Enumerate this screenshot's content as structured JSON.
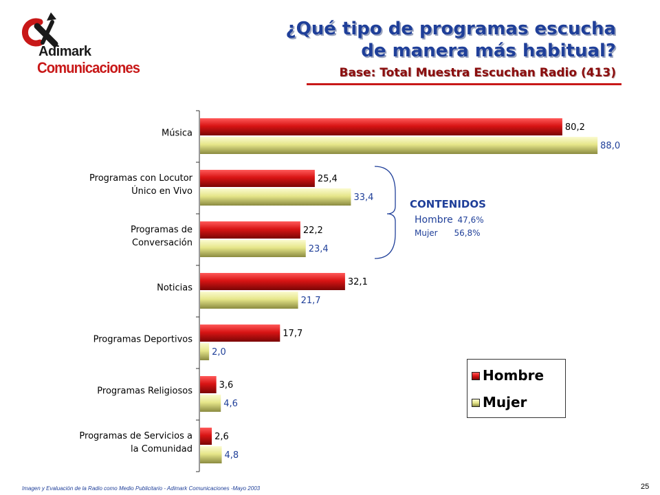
{
  "logo": {
    "name": "logo-icon",
    "line1": "Adimark",
    "line2": "Comunicaciones"
  },
  "title": {
    "line1": "¿Qué tipo de programas escucha",
    "line2": "de manera más habitual?",
    "subtitle": "Base: Total Muestra Escuchan Radio (413)"
  },
  "colors": {
    "hombre": "#d81414",
    "mujer": "#ecec96",
    "title": "#1f3f99",
    "accent": "#c81818"
  },
  "chart_data": {
    "type": "bar",
    "orientation": "horizontal",
    "categories": [
      [
        "Música"
      ],
      [
        "Programas con Locutor",
        "Único en Vivo"
      ],
      [
        "Programas de",
        "Conversación"
      ],
      [
        "Noticias"
      ],
      [
        "Programas Deportivos"
      ],
      [
        "Programas Religiosos"
      ],
      [
        "Programas de Servicios a",
        "la Comunidad"
      ]
    ],
    "series": [
      {
        "name": "Hombre",
        "values": [
          80.2,
          25.4,
          22.2,
          32.1,
          17.7,
          3.6,
          2.6
        ],
        "labels": [
          "80,2",
          "25,4",
          "22,2",
          "32,1",
          "17,7",
          "3,6",
          "2,6"
        ]
      },
      {
        "name": "Mujer",
        "values": [
          88.0,
          33.4,
          23.4,
          21.7,
          2.0,
          4.6,
          4.8
        ],
        "labels": [
          "88,0",
          "33,4",
          "23,4",
          "21,7",
          "2,0",
          "4,6",
          "4,8"
        ]
      }
    ],
    "xlim": [
      0,
      100
    ],
    "legend": "bottom-right"
  },
  "annotation": {
    "title": "CONTENIDOS",
    "rows": [
      {
        "label": "Hombre",
        "value": "47,6%"
      },
      {
        "label": "Mujer",
        "value": "56,8%"
      }
    ]
  },
  "legend": {
    "hombre": "Hombre",
    "mujer": "Mujer"
  },
  "footer": "Imagen y Evaluación de la Radio como Medio Publicitario - Adimark Comunicaciones -Mayo 2003",
  "page_number": "25"
}
